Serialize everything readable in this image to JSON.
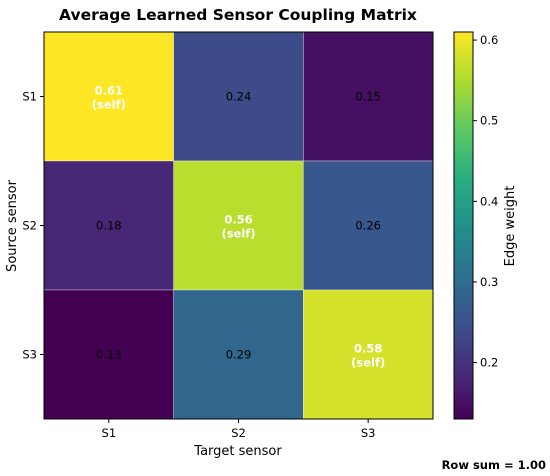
{
  "chart_data": {
    "type": "heatmap",
    "title": "Average Learned Sensor Coupling Matrix",
    "xlabel": "Target sensor",
    "ylabel": "Source sensor",
    "x_categories": [
      "S1",
      "S2",
      "S3"
    ],
    "y_categories": [
      "S1",
      "S2",
      "S3"
    ],
    "values": [
      [
        0.61,
        0.24,
        0.15
      ],
      [
        0.18,
        0.56,
        0.26
      ],
      [
        0.13,
        0.29,
        0.58
      ]
    ],
    "value_labels": [
      [
        "0.61",
        "0.24",
        "0.15"
      ],
      [
        "0.18",
        "0.56",
        "0.26"
      ],
      [
        "0.13",
        "0.29",
        "0.58"
      ]
    ],
    "diagonal_note": "(self)",
    "colormap": "viridis",
    "colorbar": {
      "label": "Edge weight",
      "range": [
        0.13,
        0.61
      ],
      "ticks": [
        0.2,
        0.3,
        0.4,
        0.5,
        0.6
      ],
      "tick_labels": [
        "0.2",
        "0.3",
        "0.4",
        "0.5",
        "0.6"
      ]
    },
    "footnote": "Row sum = 1.00"
  }
}
